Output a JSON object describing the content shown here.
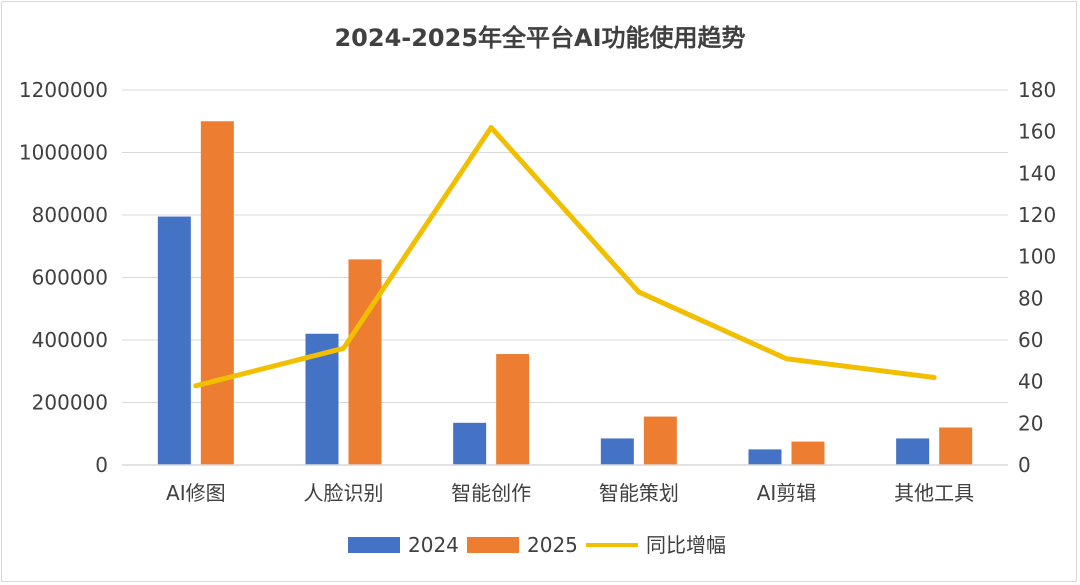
{
  "chart_data": {
    "type": "bar",
    "title": "2024-2025年全平台AI功能使用趋势",
    "categories": [
      "AI修图",
      "人脸识别",
      "智能创作",
      "智能策划",
      "AI剪辑",
      "其他工具"
    ],
    "series": [
      {
        "name": "2024",
        "type": "bar",
        "axis": "left",
        "color": "#4472C4",
        "values": [
          795000,
          420000,
          135000,
          85000,
          50000,
          85000
        ]
      },
      {
        "name": "2025",
        "type": "bar",
        "axis": "left",
        "color": "#ED7D31",
        "values": [
          1100000,
          658000,
          355000,
          155000,
          75000,
          120000
        ]
      },
      {
        "name": "同比增幅",
        "type": "line",
        "axis": "right",
        "color": "#F2BE00",
        "values": [
          38,
          56,
          162,
          83,
          51,
          42
        ]
      }
    ],
    "y_left": {
      "min": 0,
      "max": 1200000,
      "ticks": [
        0,
        200000,
        400000,
        600000,
        800000,
        1000000,
        1200000
      ]
    },
    "y_right": {
      "min": 0,
      "max": 180,
      "ticks": [
        0,
        20,
        40,
        60,
        80,
        100,
        120,
        140,
        160,
        180
      ]
    },
    "grid": true,
    "legend": "bottom"
  }
}
